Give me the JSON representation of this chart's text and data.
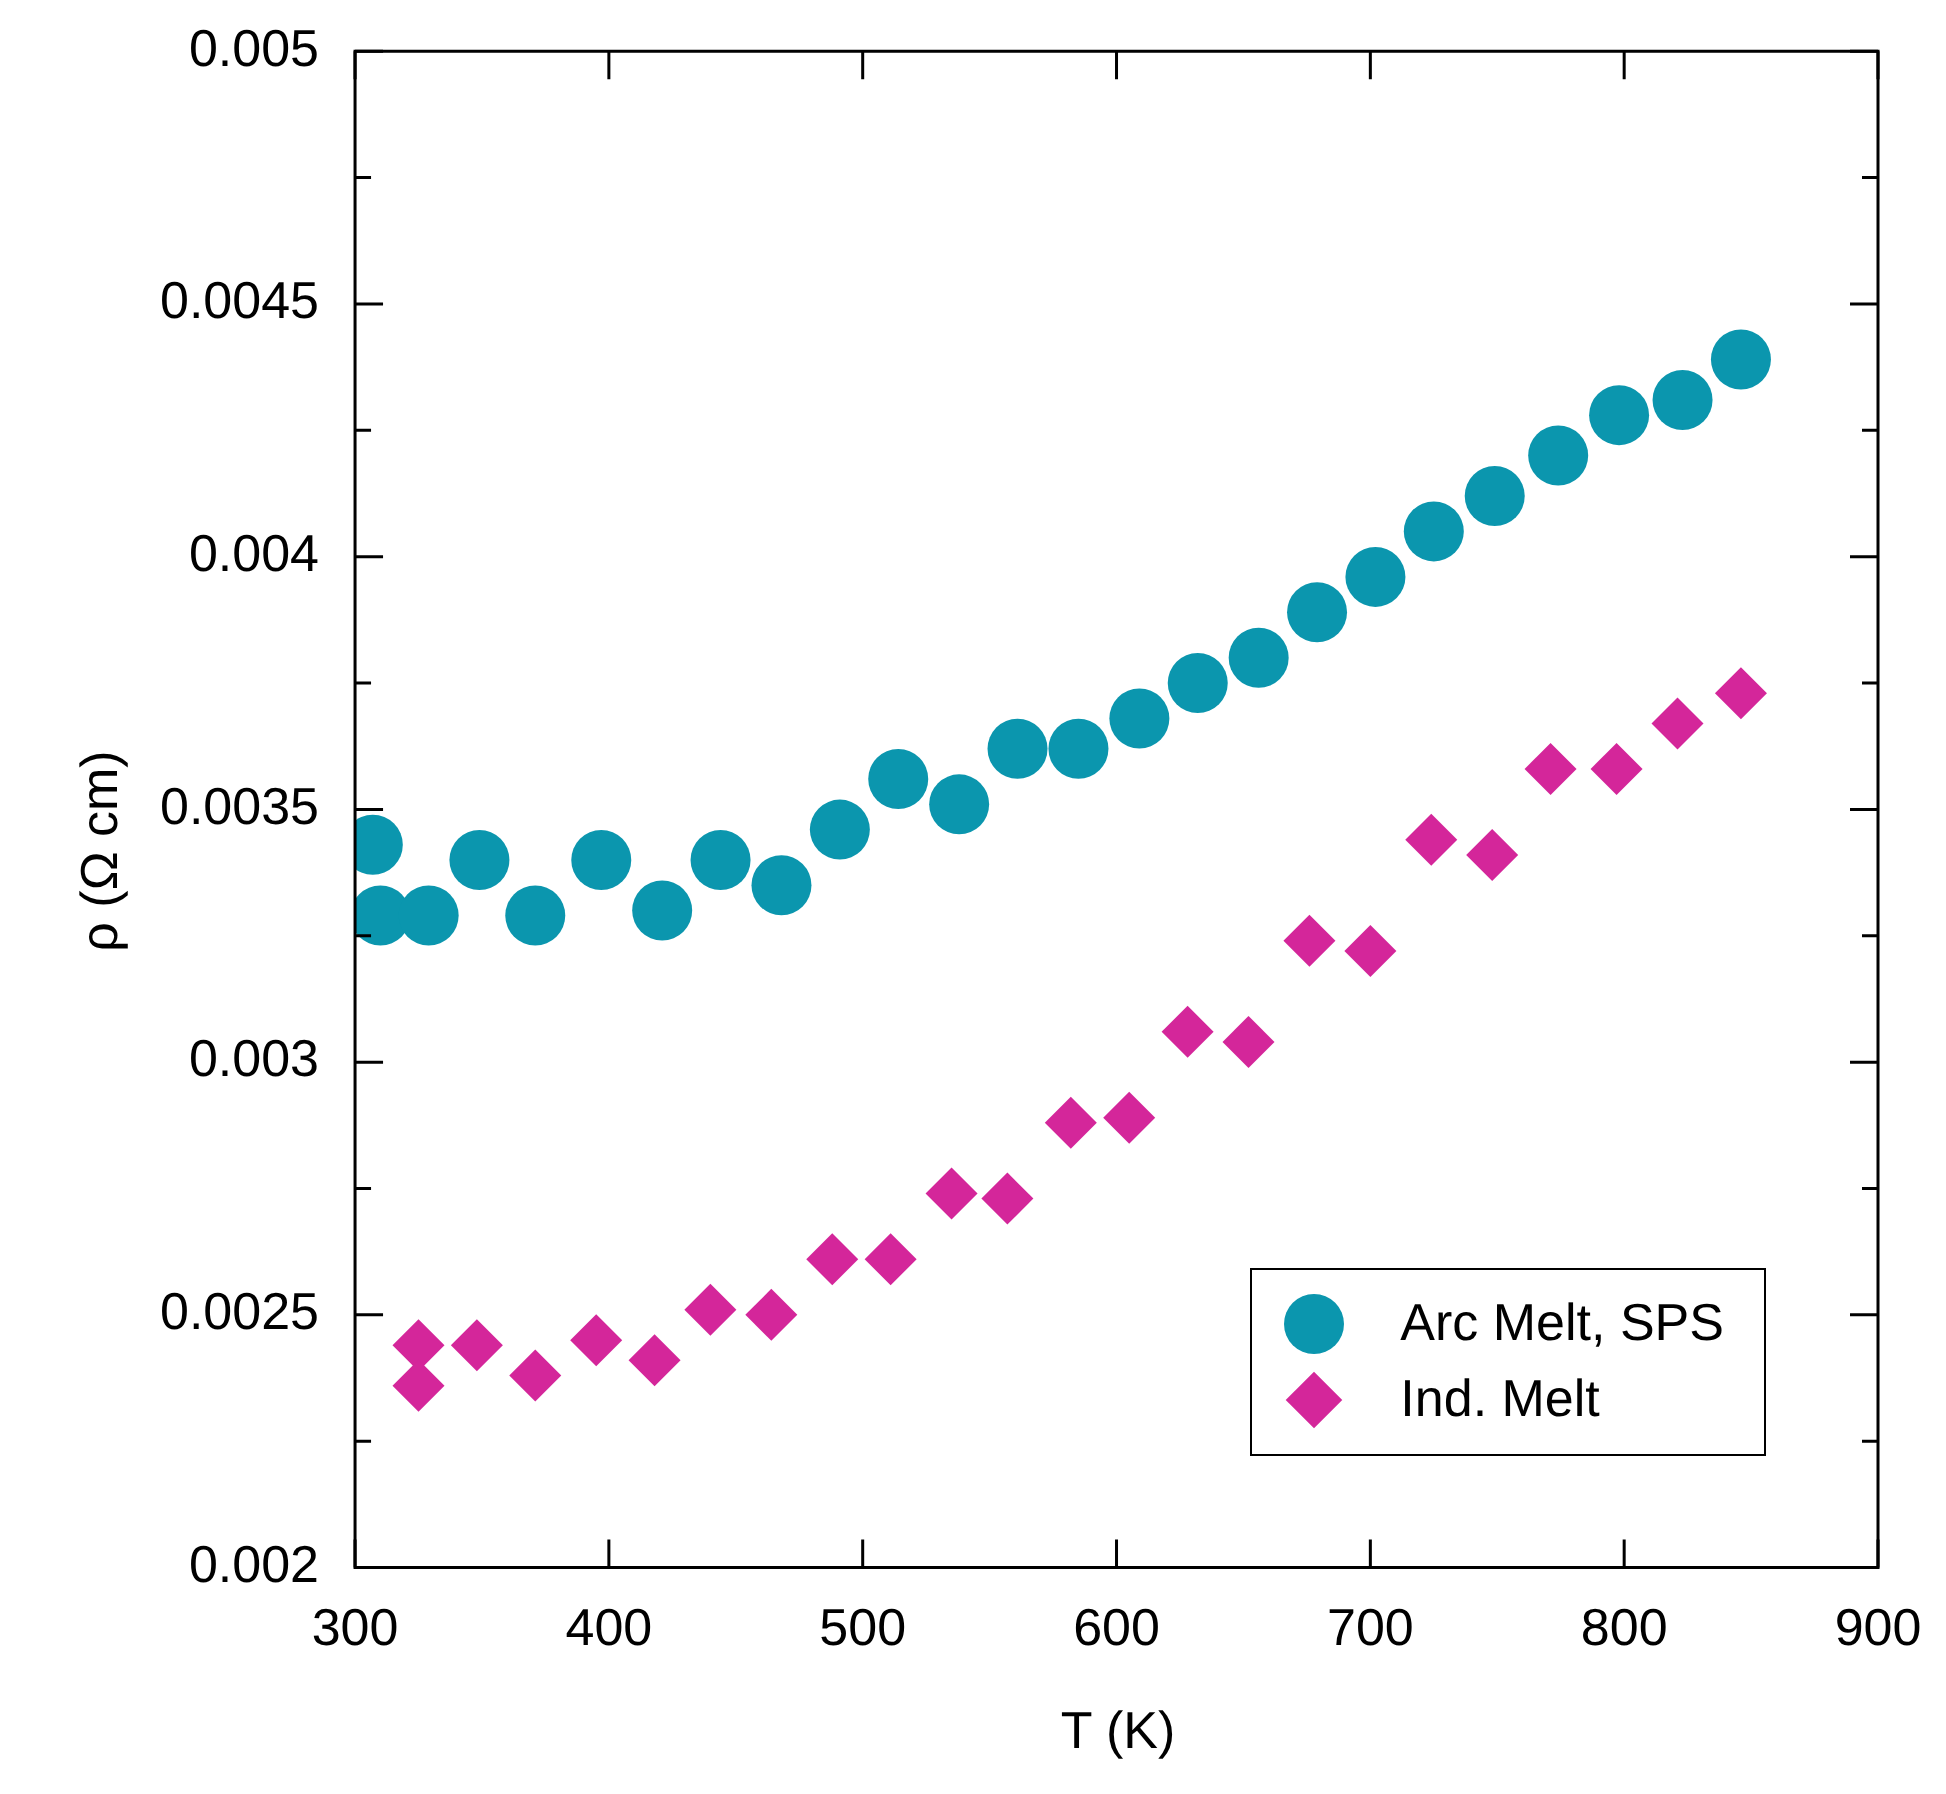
{
  "chart_data": {
    "type": "scatter",
    "xlabel": "T (K)",
    "ylabel": "ρ (Ω cm)",
    "xlim": [
      300,
      900
    ],
    "xticks": [
      300,
      400,
      500,
      600,
      700,
      800,
      900
    ],
    "ylim": [
      0.002,
      0.005
    ],
    "yticks": [
      0.002,
      {
        "value": 0.00225,
        "label": null
      },
      0.0025,
      {
        "value": 0.00275,
        "label": null
      },
      0.003,
      {
        "value": 0.00325,
        "label": null
      },
      0.0035,
      {
        "value": 0.00375,
        "label": null
      },
      0.004,
      {
        "value": 0.00425,
        "label": null
      },
      0.0045,
      {
        "value": 0.00475,
        "label": null
      },
      0.005
    ],
    "grid": false,
    "legend": "bottom right",
    "series": [
      {
        "name": "Arc Melt, SPS",
        "color": "#0b96ae",
        "marker": "circle",
        "x": [
          307,
          310,
          329,
          349,
          371,
          397,
          421,
          444,
          468,
          491,
          514,
          538,
          561,
          585,
          609,
          632,
          656,
          679,
          702,
          725,
          749,
          774,
          798,
          823,
          846
        ],
        "values": [
          0.00343,
          0.00329,
          0.00329,
          0.0034,
          0.00329,
          0.0034,
          0.0033,
          0.0034,
          0.00335,
          0.00346,
          0.00356,
          0.00351,
          0.00362,
          0.00362,
          0.00368,
          0.00375,
          0.0038,
          0.00389,
          0.00396,
          0.00405,
          0.00412,
          0.0042,
          0.00428,
          0.00431,
          0.00439
        ]
      },
      {
        "name": "Ind. Melt",
        "color": "#d4269a",
        "marker": "diamond",
        "x": [
          325,
          325,
          348,
          371,
          395,
          418,
          440,
          464,
          488,
          511,
          535,
          557,
          582,
          605,
          628,
          652,
          676,
          700,
          724,
          748,
          771,
          797,
          821,
          846
        ],
        "values": [
          0.00244,
          0.00236,
          0.00244,
          0.00238,
          0.00245,
          0.00241,
          0.00251,
          0.0025,
          0.00261,
          0.00261,
          0.00274,
          0.00273,
          0.00288,
          0.00289,
          0.00306,
          0.00304,
          0.00324,
          0.00322,
          0.00344,
          0.00341,
          0.00358,
          0.00358,
          0.00367,
          0.00373
        ]
      }
    ]
  }
}
